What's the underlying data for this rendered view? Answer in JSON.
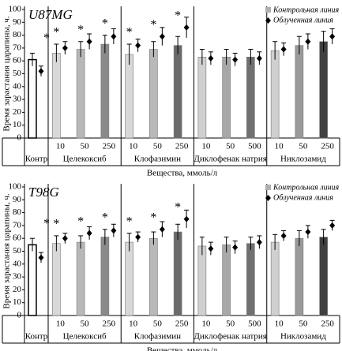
{
  "chart_data": [
    {
      "type": "bar",
      "title": "U87MG",
      "y_label": "Время зарастания царапины, ч.",
      "x_label": "Вещества, ммоль/л",
      "groups": [
        {
          "name": "Контр",
          "categories": [
            null
          ]
        },
        {
          "name": "Целекоксиб",
          "categories": [
            "10",
            "50",
            "250"
          ]
        },
        {
          "name": "Клофазимин",
          "categories": [
            "10",
            "50",
            "250"
          ]
        },
        {
          "name": "Диклофенак натрия",
          "categories": [
            "10",
            "50",
            "500"
          ]
        },
        {
          "name": "Никлозамид",
          "categories": [
            "10",
            "50",
            "250"
          ]
        }
      ],
      "series": [
        {
          "name": "Контрольная линия",
          "color": "#b0b0b0",
          "colors": [
            "#ffffff",
            "#d8d8d8",
            "#b8b8b8",
            "#8a8a8a",
            "#d8d8d8",
            "#b8b8b8",
            "#6a6a6a",
            "#d0d0d0",
            "#a8a8a8",
            "#707070",
            "#d0d0d0",
            "#9a9a9a",
            "#404040"
          ],
          "values": [
            61,
            66,
            69,
            73,
            65,
            69,
            72,
            63,
            63,
            63,
            68,
            72,
            75
          ],
          "errors": [
            5,
            7,
            6,
            7,
            8,
            6,
            7,
            6,
            6,
            6,
            7,
            7,
            8
          ]
        },
        {
          "name": "Облученная линия",
          "color": "#000000",
          "values": [
            52,
            70,
            75,
            79,
            72,
            79,
            86,
            62,
            61,
            62,
            69,
            75,
            79
          ],
          "errors": [
            4,
            5,
            6,
            6,
            5,
            7,
            8,
            5,
            5,
            5,
            5,
            6,
            6
          ]
        }
      ],
      "annotations": [
        "*",
        "*",
        "*",
        "*",
        "*",
        "*",
        "*",
        null,
        null,
        null,
        null,
        null,
        null
      ],
      "ylim": [
        0,
        100
      ],
      "yticks": [
        0,
        10,
        20,
        30,
        40,
        50,
        60,
        70,
        80,
        90,
        100
      ]
    },
    {
      "type": "bar",
      "title": "T98G",
      "y_label": "Время зарастания царапины, ч.",
      "x_label": "Вещества, ммоль/л",
      "groups": [
        {
          "name": "Контр",
          "categories": [
            null
          ]
        },
        {
          "name": "Целекоксиб",
          "categories": [
            "10",
            "50",
            "250"
          ]
        },
        {
          "name": "Клофазимин",
          "categories": [
            "10",
            "50",
            "250"
          ]
        },
        {
          "name": "Диклофенак натрия",
          "categories": [
            "10",
            "50",
            "500"
          ]
        },
        {
          "name": "Никлозамид",
          "categories": [
            "10",
            "50",
            "250"
          ]
        }
      ],
      "series": [
        {
          "name": "Контрольная линия",
          "color": "#b0b0b0",
          "colors": [
            "#ffffff",
            "#d8d8d8",
            "#b8b8b8",
            "#8a8a8a",
            "#d8d8d8",
            "#b8b8b8",
            "#6a6a6a",
            "#d0d0d0",
            "#a8a8a8",
            "#707070",
            "#d0d0d0",
            "#9a9a9a",
            "#404040"
          ],
          "values": [
            55,
            56,
            57,
            61,
            57,
            60,
            65,
            54,
            55,
            56,
            57,
            60,
            61
          ],
          "errors": [
            5,
            6,
            5,
            6,
            7,
            5,
            6,
            7,
            6,
            5,
            6,
            6,
            6
          ]
        },
        {
          "name": "Облученная линия",
          "color": "#000000",
          "values": [
            45,
            60,
            64,
            66,
            61,
            67,
            75,
            52,
            53,
            57,
            62,
            65,
            70
          ],
          "errors": [
            4,
            4,
            5,
            5,
            4,
            6,
            7,
            5,
            5,
            5,
            4,
            5,
            4
          ]
        }
      ],
      "annotations": [
        "*",
        "*",
        "*",
        "*",
        "*",
        "*",
        "*",
        null,
        null,
        null,
        null,
        null,
        null
      ],
      "ylim": [
        0,
        100
      ],
      "yticks": [
        0,
        10,
        20,
        30,
        40,
        50,
        60,
        70,
        80,
        90,
        100
      ]
    }
  ]
}
